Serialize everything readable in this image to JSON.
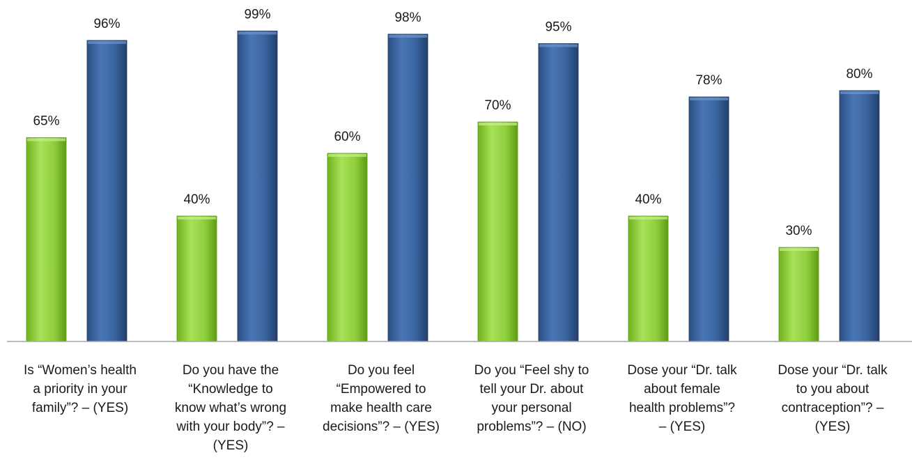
{
  "chart_data": {
    "type": "bar",
    "title": "",
    "xlabel": "",
    "ylabel": "",
    "ylim": [
      0,
      100
    ],
    "grid": false,
    "legend": "none",
    "categories": [
      [
        "Is “Women’s health",
        "a priority in your",
        "family”? – (YES)"
      ],
      [
        "Do you have the",
        "“Knowledge to",
        "know what’s wrong",
        "with your body”? –",
        "(YES)"
      ],
      [
        "Do you feel",
        "“Empowered to",
        "make health care",
        "decisions”? – (YES)"
      ],
      [
        "Do you “Feel shy to",
        "tell your Dr. about",
        "your personal",
        "problems”? – (NO)"
      ],
      [
        "Dose your “Dr. talk",
        "about female",
        "health problems”?",
        "– (YES)"
      ],
      [
        "Dose your “Dr. talk",
        "to you about",
        "contraception”? –",
        "(YES)"
      ]
    ],
    "series": [
      {
        "color": "#8fcf3c",
        "values": [
          65,
          40,
          60,
          70,
          40,
          30
        ],
        "labels": [
          "65%",
          "40%",
          "60%",
          "70%",
          "40%",
          "30%"
        ]
      },
      {
        "color": "#3b639e",
        "values": [
          96,
          99,
          98,
          95,
          78,
          80
        ],
        "labels": [
          "96%",
          "99%",
          "98%",
          "95%",
          "78%",
          "80%"
        ]
      }
    ]
  }
}
